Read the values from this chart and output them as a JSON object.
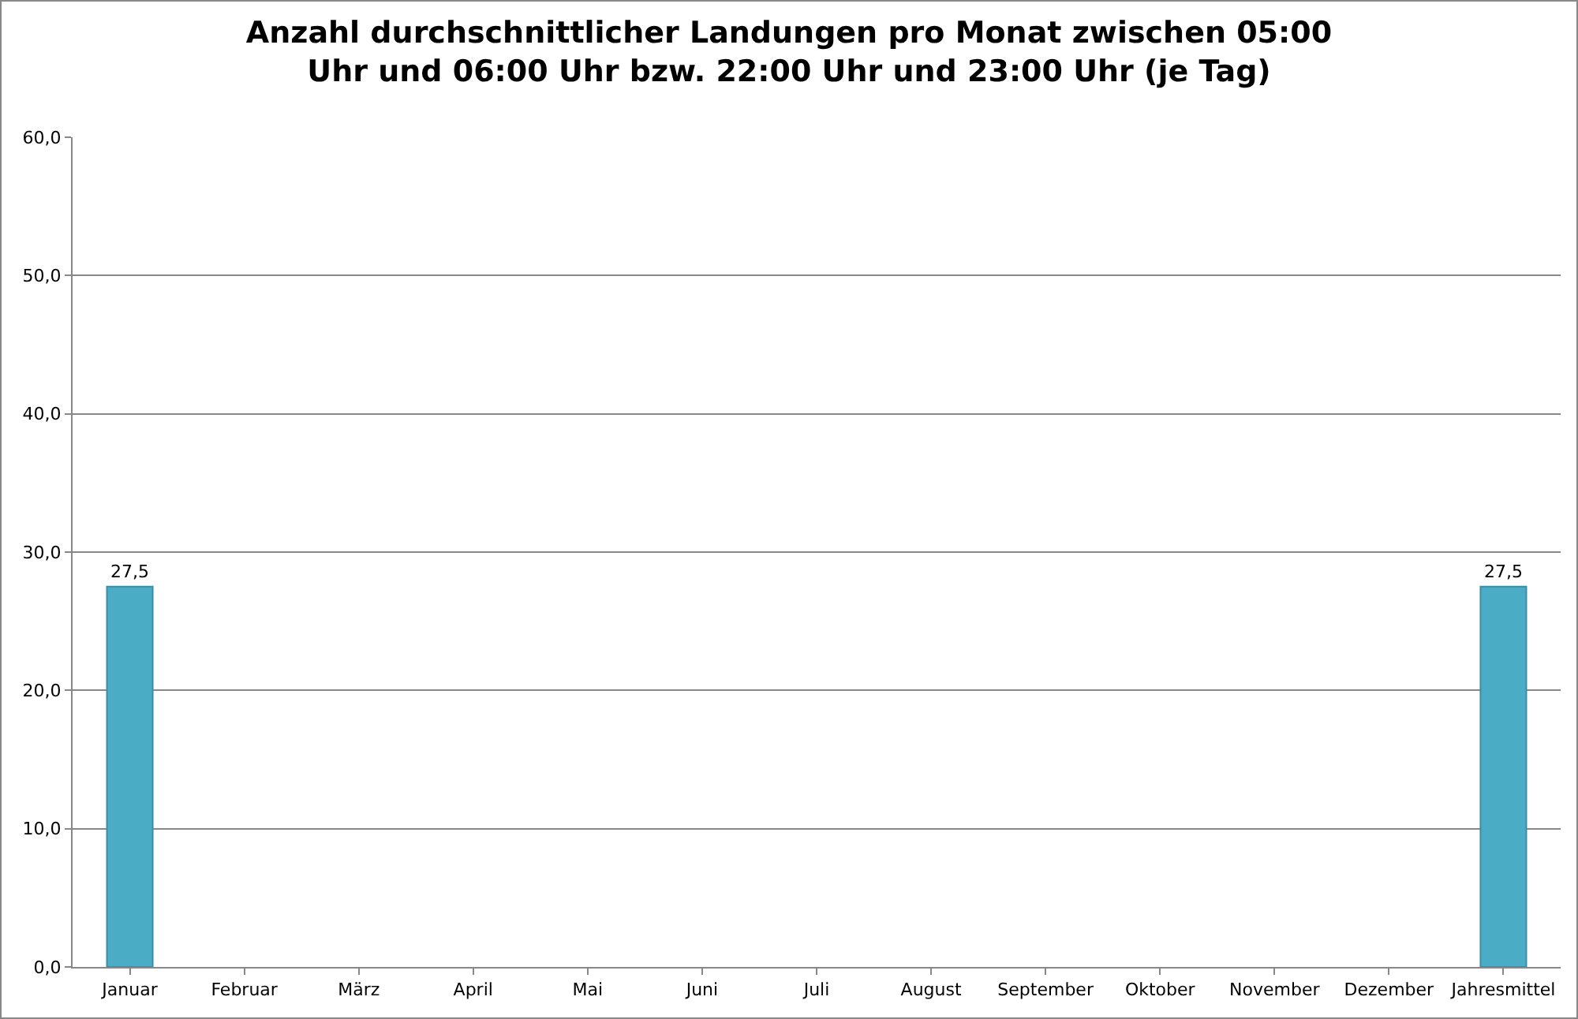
{
  "chart_data": {
    "type": "bar",
    "title": "Anzahl durchschnittlicher Landungen pro Monat zwischen 05:00 Uhr und 06:00 Uhr bzw. 22:00 Uhr und 23:00 Uhr (je Tag)",
    "categories": [
      "Januar",
      "Februar",
      "März",
      "April",
      "Mai",
      "Juni",
      "Juli",
      "August",
      "September",
      "Oktober",
      "November",
      "Dezember",
      "Jahresmittel"
    ],
    "values": [
      27.5,
      null,
      null,
      null,
      null,
      null,
      null,
      null,
      null,
      null,
      null,
      null,
      27.5
    ],
    "value_labels": [
      "27,5",
      null,
      null,
      null,
      null,
      null,
      null,
      null,
      null,
      null,
      null,
      null,
      "27,5"
    ],
    "color": "#4bacc6",
    "ylim": [
      0,
      60
    ],
    "yticks": [
      {
        "value": 0,
        "label": "0,0"
      },
      {
        "value": 10,
        "label": "10,0"
      },
      {
        "value": 20,
        "label": "20,0"
      },
      {
        "value": 30,
        "label": "30,0"
      },
      {
        "value": 40,
        "label": "40,0"
      },
      {
        "value": 50,
        "label": "50,0"
      },
      {
        "value": 60,
        "label": "60,0"
      }
    ],
    "grid": "y"
  }
}
